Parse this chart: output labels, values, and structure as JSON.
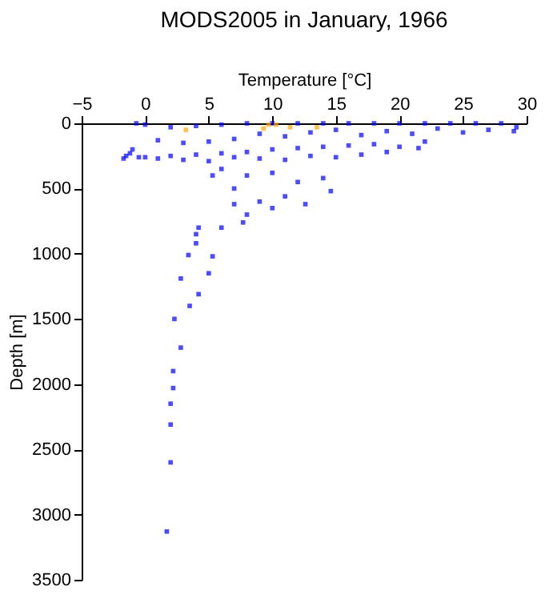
{
  "chart_data": {
    "type": "scatter",
    "title": "MODS2005 in January, 1966",
    "xlabel": "Temperature [°C]",
    "ylabel": "Depth [m]",
    "xlim": [
      -5,
      30
    ],
    "xticks": [
      -5,
      0,
      5,
      10,
      15,
      20,
      25,
      30
    ],
    "ylim": [
      3500,
      0
    ],
    "yticks": [
      0,
      500,
      1000,
      1500,
      2000,
      2500,
      3000,
      3500
    ],
    "grid": false,
    "marker": "square",
    "series": [
      {
        "color": "#0000ff",
        "x": [
          -0.7,
          0,
          2,
          4,
          6,
          8,
          10,
          12,
          14,
          16,
          18,
          20,
          22,
          24,
          26,
          28,
          29.2,
          29,
          27,
          25,
          23,
          21,
          19,
          17,
          15,
          13,
          11,
          9,
          7,
          5,
          3,
          1,
          -1,
          -1.2,
          -1.7,
          -1.5,
          0,
          2,
          4,
          6,
          8,
          10,
          12,
          14,
          16,
          18,
          20,
          21.5,
          22,
          19,
          17,
          15,
          13,
          11,
          9,
          7,
          5,
          3,
          1,
          -0.5,
          6,
          8,
          10,
          12,
          14,
          14.6,
          12.6,
          11,
          9,
          7,
          5.3,
          4,
          8,
          10,
          7,
          6,
          4,
          7.7,
          4.2,
          5.3,
          3.4,
          5,
          2.8,
          4.2,
          3.5,
          2.3,
          2.8,
          2.2,
          2.2,
          2,
          2,
          2,
          1.7
        ],
        "values": [
          0,
          10,
          30,
          20,
          10,
          0,
          0,
          0,
          0,
          0,
          0,
          0,
          0,
          0,
          0,
          0,
          30,
          60,
          50,
          70,
          40,
          80,
          60,
          90,
          50,
          70,
          100,
          80,
          120,
          140,
          150,
          130,
          200,
          230,
          270,
          250,
          260,
          250,
          240,
          230,
          220,
          200,
          190,
          180,
          170,
          160,
          180,
          190,
          140,
          220,
          240,
          260,
          250,
          280,
          270,
          260,
          290,
          280,
          270,
          260,
          350,
          400,
          380,
          450,
          420,
          520,
          620,
          560,
          600,
          500,
          400,
          920,
          700,
          650,
          620,
          800,
          850,
          760,
          800,
          1020,
          1010,
          1150,
          1190,
          1310,
          1400,
          1500,
          1720,
          1900,
          2030,
          2150,
          2310,
          2600,
          3130
        ]
      },
      {
        "color": "#ffa500",
        "x": [
          3.2,
          9.3,
          9.7,
          10.3,
          11.4,
          13.5
        ],
        "values": [
          50,
          40,
          10,
          10,
          30,
          30
        ]
      }
    ]
  }
}
